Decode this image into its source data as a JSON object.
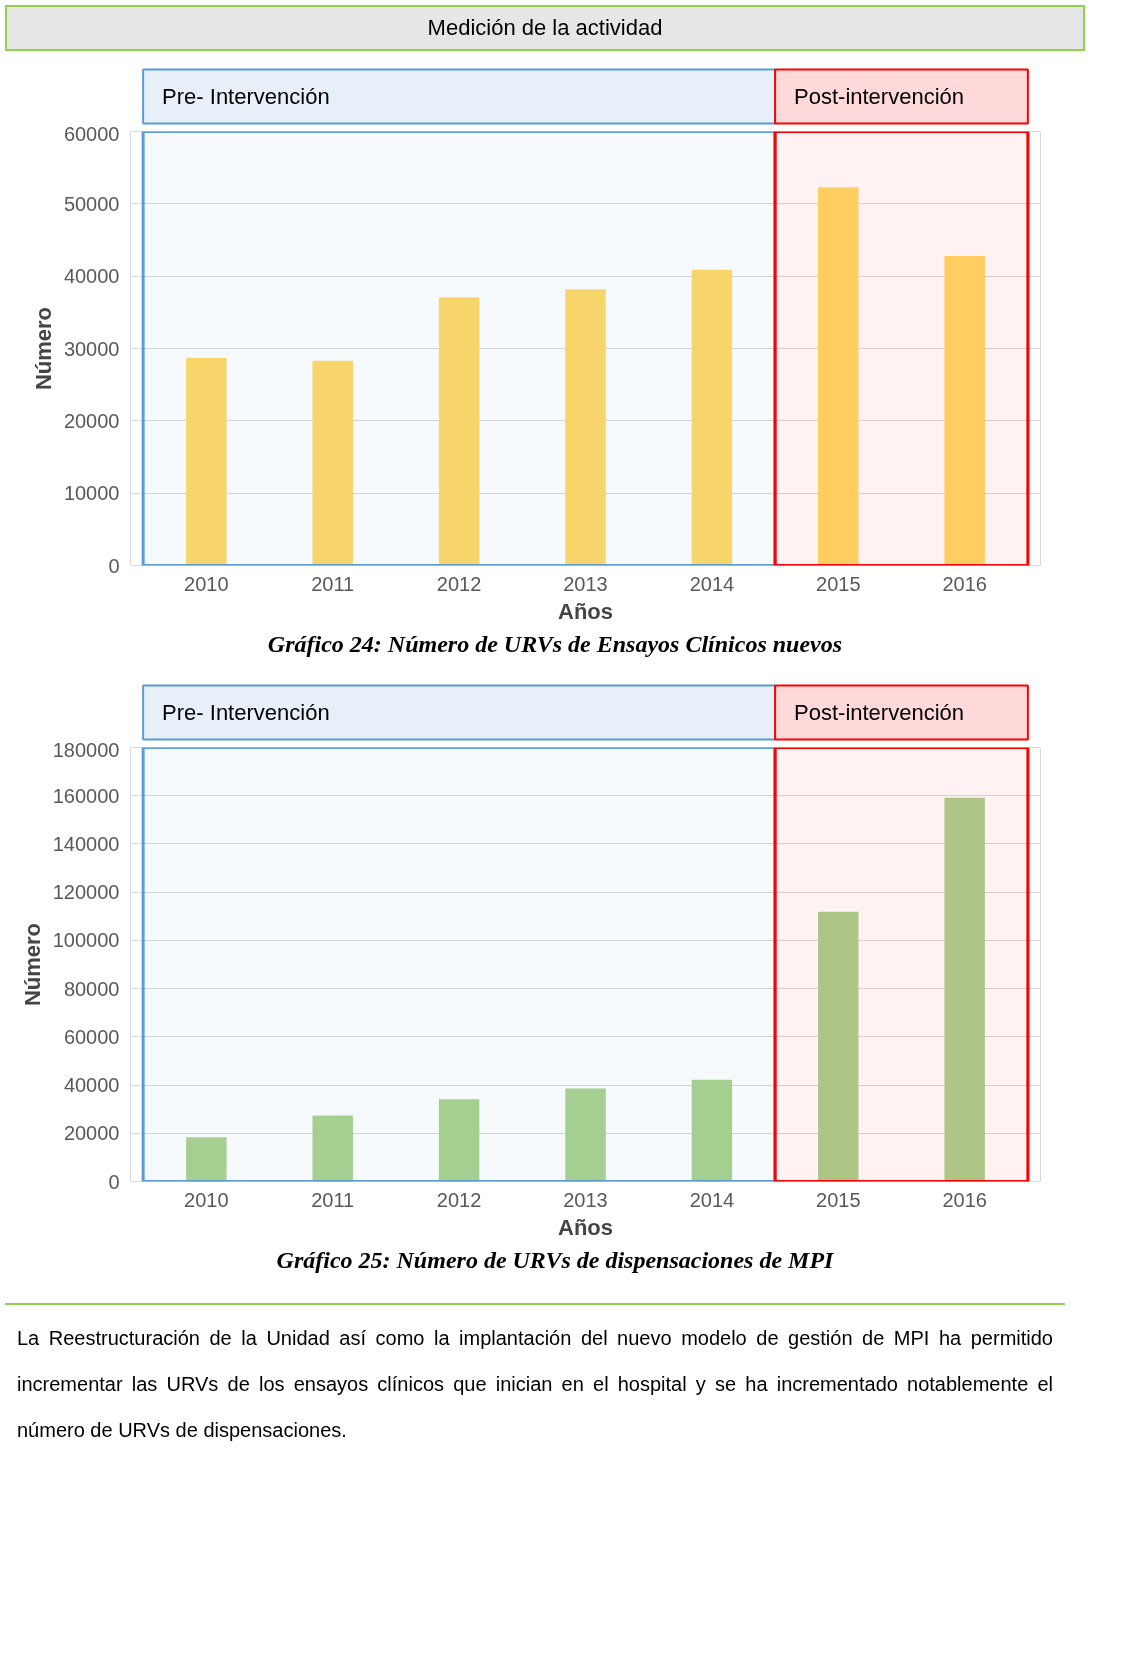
{
  "chart_data": [
    {
      "type": "bar",
      "title": "Medición de la actividad",
      "subtitle": "Gráfico 24: Número de URVs de Ensayos Clínicos nuevos",
      "xlabel": "Años",
      "ylabel": "Número",
      "categories": [
        "2010",
        "2011",
        "2012",
        "2013",
        "2014",
        "2015",
        "2016"
      ],
      "values": [
        28700,
        28300,
        37100,
        38200,
        40900,
        52300,
        42800
      ],
      "color": "#ffd966",
      "ylim": [
        0,
        60000
      ],
      "yticks": [
        0,
        10000,
        20000,
        30000,
        40000,
        50000,
        60000
      ],
      "grid": "y",
      "bands": [
        {
          "axis": "x",
          "from": "2010",
          "to": "2014",
          "label": "Pre- Intervención",
          "color": "#5b9bd5"
        },
        {
          "axis": "x",
          "from": "2015",
          "to": "2016",
          "label": "Post-intervención",
          "color": "#ff0000"
        }
      ]
    },
    {
      "type": "bar",
      "subtitle": "Gráfico 25: Número de URVs de dispensaciones de MPI",
      "xlabel": "Años",
      "ylabel": "Número",
      "categories": [
        "2010",
        "2011",
        "2012",
        "2013",
        "2014",
        "2015",
        "2016"
      ],
      "values": [
        18400,
        27400,
        34100,
        38600,
        42200,
        111900,
        159200
      ],
      "color": "#a9d18e",
      "ylim": [
        0,
        180000
      ],
      "yticks": [
        0,
        20000,
        40000,
        60000,
        80000,
        100000,
        120000,
        140000,
        160000,
        180000
      ],
      "grid": "y",
      "bands": [
        {
          "axis": "x",
          "from": "2010",
          "to": "2014",
          "label": "Pre- Intervención",
          "color": "#5b9bd5"
        },
        {
          "axis": "x",
          "from": "2015",
          "to": "2016",
          "label": "Post-intervención",
          "color": "#ff0000"
        }
      ],
      "annotations": [
        "La Reestructuración de la Unidad así como la implantación del nuevo modelo de gestión de MPI ha permitido incrementar las URVs de los ensayos clínicos que inician en el hospital y se ha incrementado notablemente el número de URVs de dispensaciones."
      ]
    }
  ]
}
